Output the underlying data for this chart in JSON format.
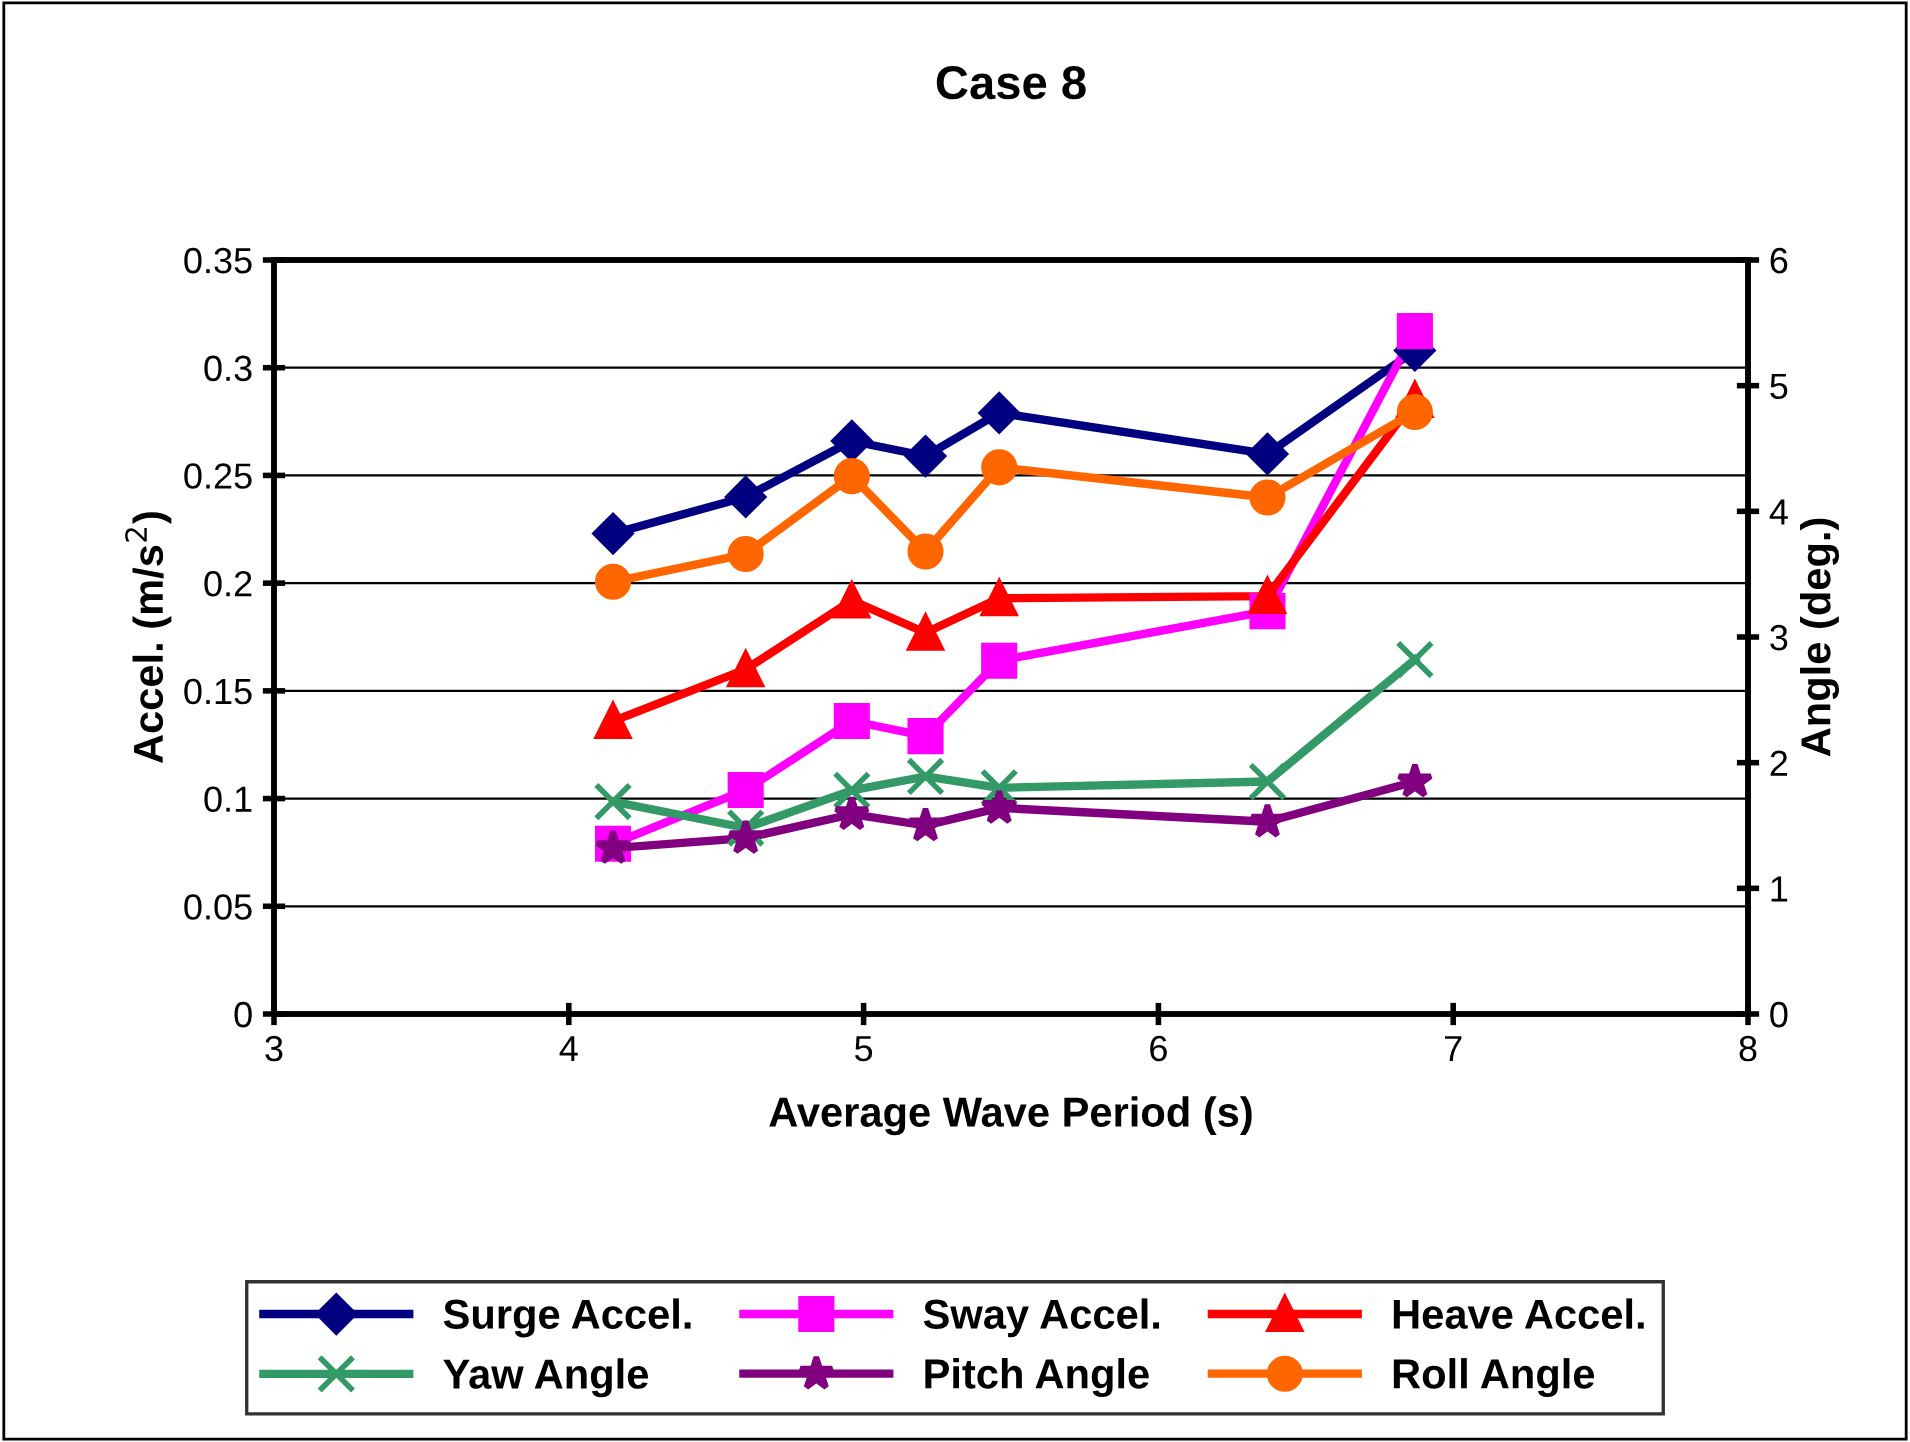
{
  "chart_data": {
    "type": "line",
    "title": "Case 8",
    "xlabel": "Average Wave Period (s)",
    "ylabel": "Accel. (m/s$^{2}$)",
    "y2label": "Angle (deg.)",
    "x": [
      4.15,
      4.6,
      4.96,
      5.21,
      5.46,
      6.37,
      6.87
    ],
    "xlim": [
      3,
      8
    ],
    "xticks": [
      3,
      4,
      5,
      6,
      7,
      8
    ],
    "ylim": [
      0,
      0.35
    ],
    "yticks": [
      0,
      0.05,
      0.1,
      0.15,
      0.2,
      0.25,
      0.3,
      0.35
    ],
    "y2lim": [
      0,
      6
    ],
    "y2ticks": [
      0,
      1,
      2,
      3,
      4,
      5,
      6
    ],
    "grid": "y",
    "legend": "bottom",
    "series": [
      {
        "name": "Surge Accel.",
        "color": "#000080",
        "marker": "diamond",
        "values": [
          0.223,
          0.24,
          0.266,
          0.259,
          0.279,
          0.26,
          0.308
        ]
      },
      {
        "name": "Sway Accel.",
        "color": "#ff00ff",
        "marker": "square",
        "values": [
          0.079,
          0.104,
          0.136,
          0.129,
          0.164,
          0.187,
          0.317
        ]
      },
      {
        "name": "Heave Accel.",
        "color": "#ff0000",
        "marker": "triangle",
        "values": [
          0.136,
          0.16,
          0.192,
          0.177,
          0.193,
          0.194,
          0.285
        ]
      },
      {
        "name": "Yaw Angle",
        "color": "#339966",
        "marker": "cross",
        "axis": "y2",
        "values": [
          1.69,
          1.48,
          1.78,
          1.89,
          1.8,
          1.85,
          2.82
        ]
      },
      {
        "name": "Pitch Angle",
        "color": "#800080",
        "marker": "star",
        "axis": "y2",
        "values": [
          1.32,
          1.4,
          1.59,
          1.5,
          1.64,
          1.53,
          1.85
        ]
      },
      {
        "name": "Roll Angle",
        "color": "#ff6600",
        "marker": "circle",
        "axis": "y2",
        "values": [
          3.44,
          3.66,
          4.28,
          3.68,
          4.35,
          4.11,
          4.79
        ]
      }
    ]
  }
}
